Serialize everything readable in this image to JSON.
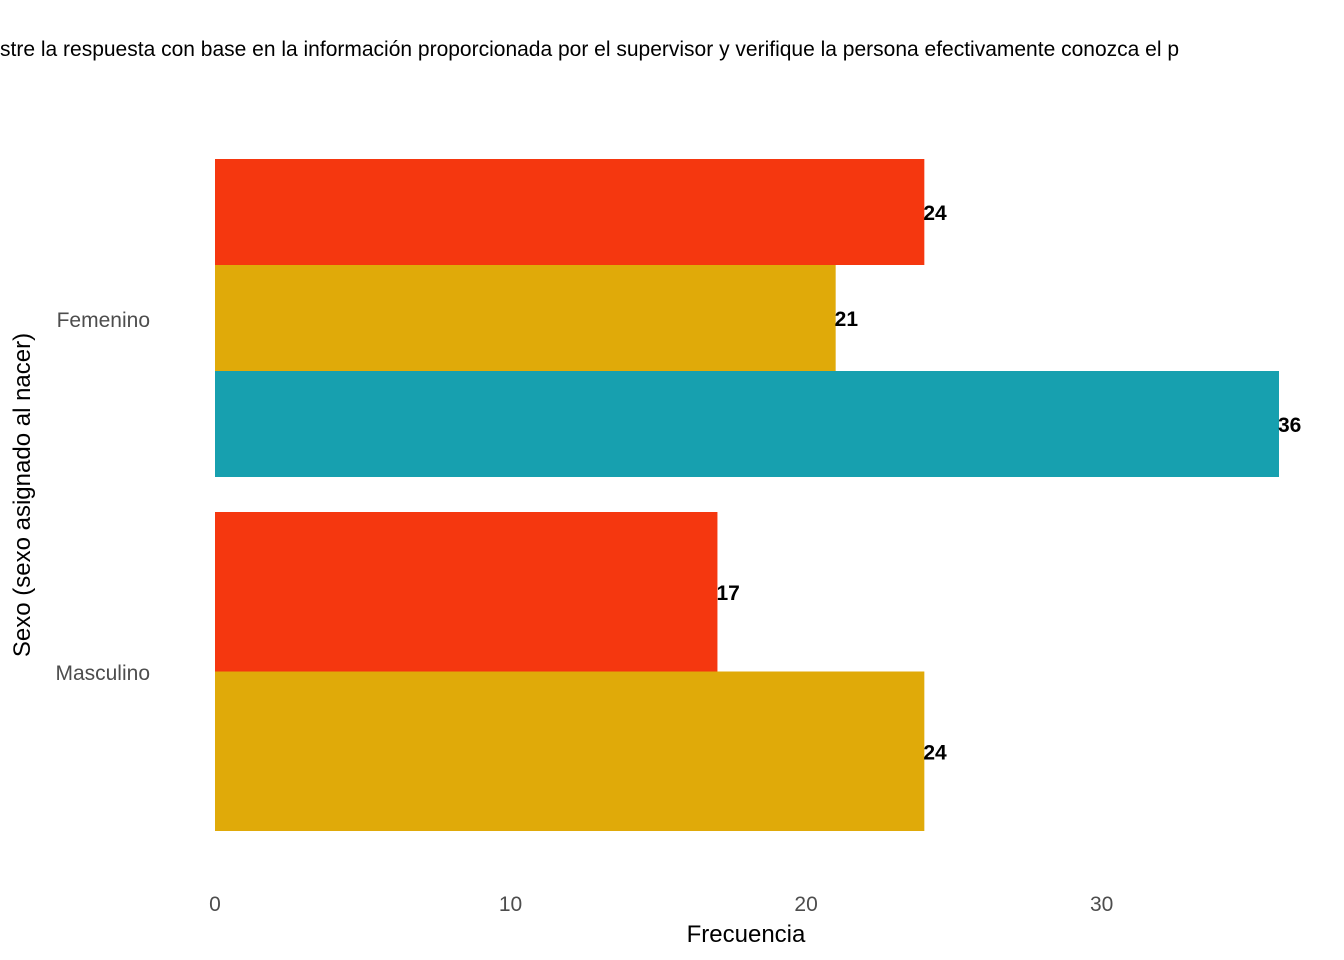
{
  "chart_data": {
    "type": "bar",
    "orientation": "horizontal",
    "title": "stre la respuesta con base en la información proporcionada por el supervisor y verifique la persona efectivamente conozca el p",
    "xlabel": "Frecuencia",
    "ylabel": "Sexo (sexo asignado al nacer)",
    "xlim": [
      0,
      36
    ],
    "x_ticks": [
      "0",
      "10",
      "20",
      "30"
    ],
    "grid": false,
    "legend": "none",
    "categories": [
      "Femenino",
      "Masculino"
    ],
    "groups": [
      {
        "category": "Femenino",
        "bars": [
          {
            "value": 24,
            "label": "24",
            "color": "#F5370F"
          },
          {
            "value": 21,
            "label": "21",
            "color": "#E0AA09"
          },
          {
            "value": 36,
            "label": "36",
            "color": "#17A0AF"
          }
        ]
      },
      {
        "category": "Masculino",
        "bars": [
          {
            "value": 17,
            "label": "17",
            "color": "#F5370F"
          },
          {
            "value": 24,
            "label": "24",
            "color": "#E0AA09"
          }
        ]
      }
    ]
  }
}
